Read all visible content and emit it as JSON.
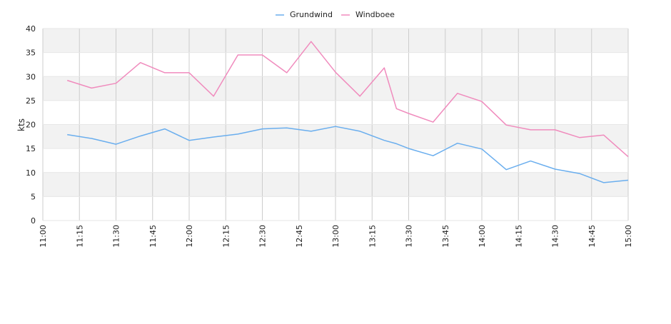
{
  "chart_data": {
    "type": "line",
    "title": "",
    "xlabel": "",
    "ylabel": "kts",
    "ylim": [
      0,
      40
    ],
    "yticks": [
      0,
      5,
      10,
      15,
      20,
      25,
      30,
      35,
      40
    ],
    "x_tick_labels": [
      "11:00",
      "11:15",
      "11:30",
      "11:45",
      "12:00",
      "12:15",
      "12:30",
      "12:45",
      "13:00",
      "13:15",
      "13:30",
      "13:45",
      "14:00",
      "14:15",
      "14:30",
      "14:45",
      "15:00"
    ],
    "xlim": [
      "11:00",
      "15:00"
    ],
    "grid": true,
    "legend_position": "top-center",
    "x": [
      "11:10",
      "11:20",
      "11:30",
      "11:40",
      "11:50",
      "12:00",
      "12:10",
      "12:20",
      "12:30",
      "12:40",
      "12:50",
      "13:00",
      "13:10",
      "13:20",
      "13:25",
      "13:30",
      "13:40",
      "13:50",
      "14:00",
      "14:10",
      "14:20",
      "14:30",
      "14:40",
      "14:50",
      "15:00"
    ],
    "series": [
      {
        "name": "Grundwind",
        "color": "#6aaeee",
        "values": [
          17.9,
          17.1,
          15.9,
          17.6,
          19.1,
          16.7,
          17.4,
          18.0,
          19.1,
          19.3,
          18.6,
          19.6,
          18.6,
          16.7,
          16.0,
          15.0,
          13.5,
          16.1,
          14.9,
          10.6,
          12.4,
          10.7,
          9.8,
          7.9,
          8.4
        ]
      },
      {
        "name": "Windboee",
        "color": "#f08bbd",
        "values": [
          29.2,
          27.6,
          28.6,
          32.9,
          30.8,
          30.8,
          25.9,
          34.5,
          34.5,
          30.8,
          37.3,
          30.9,
          25.9,
          31.8,
          23.3,
          22.3,
          20.5,
          26.5,
          24.8,
          19.9,
          18.9,
          18.9,
          17.3,
          17.8,
          13.3
        ]
      }
    ]
  },
  "colors": {
    "band_shade": "#f2f2f2",
    "grid_line": "#cccccc",
    "axis_text": "#222222"
  }
}
